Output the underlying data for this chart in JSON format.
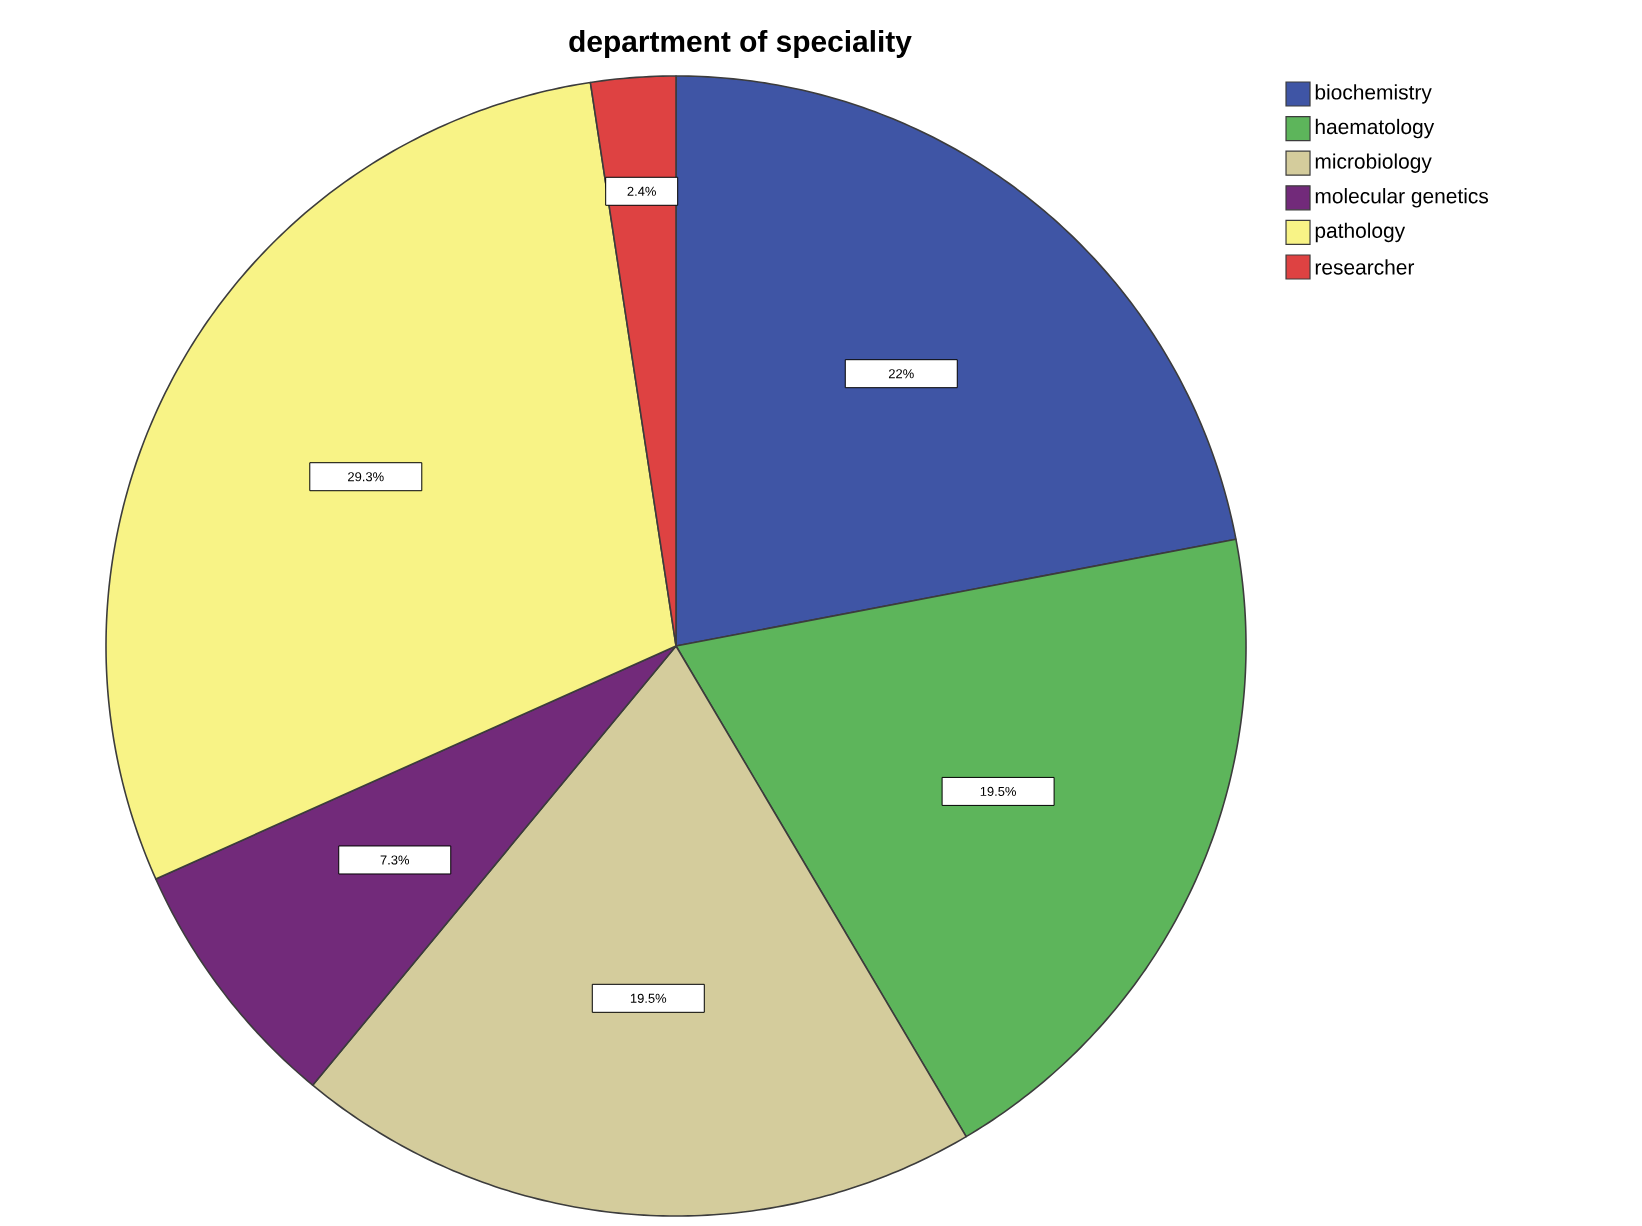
{
  "chart_data": {
    "type": "pie",
    "title": "department of speciality",
    "categories": [
      "biochemistry",
      "haematology",
      "microbiology",
      "molecular genetics",
      "pathology",
      "researcher"
    ],
    "values": [
      22,
      19.5,
      19.5,
      7.3,
      29.3,
      2.4
    ],
    "colors": [
      "#3f55a5",
      "#5db55b",
      "#d4cc9c",
      "#722a7a",
      "#f8f386",
      "#de4242"
    ],
    "value_labels": [
      "22%",
      "19.5%",
      "19.5%",
      "7.3%",
      "29.3%",
      "2.4%"
    ],
    "legend": "top right"
  }
}
